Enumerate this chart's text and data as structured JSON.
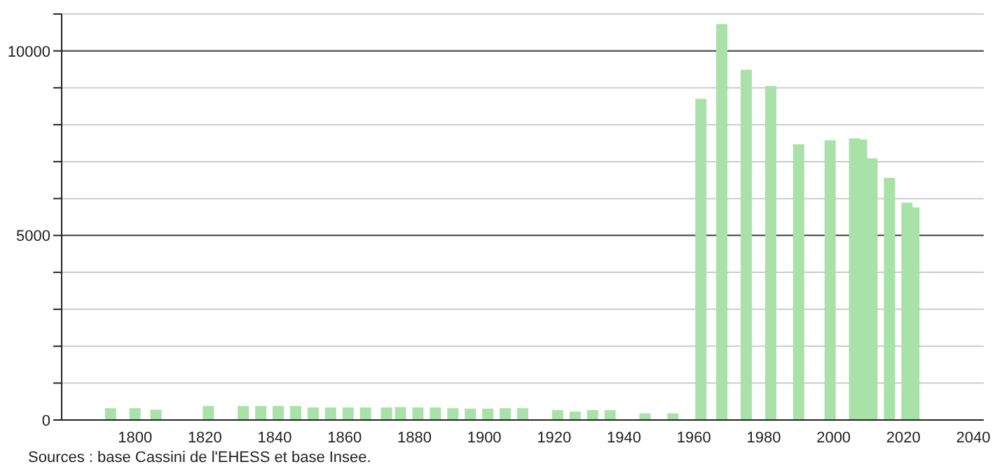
{
  "chart_data": {
    "type": "bar",
    "x": [
      1793,
      1800,
      1806,
      1821,
      1831,
      1836,
      1841,
      1846,
      1851,
      1856,
      1861,
      1866,
      1872,
      1876,
      1881,
      1886,
      1891,
      1896,
      1901,
      1906,
      1911,
      1921,
      1926,
      1931,
      1936,
      1946,
      1954,
      1962,
      1968,
      1975,
      1982,
      1990,
      1999,
      2006,
      2008,
      2011,
      2016,
      2021,
      2023
    ],
    "values": [
      320,
      320,
      280,
      380,
      380,
      380,
      380,
      380,
      340,
      340,
      340,
      340,
      340,
      350,
      340,
      340,
      320,
      310,
      310,
      320,
      320,
      270,
      230,
      270,
      270,
      180,
      180,
      8700,
      10730,
      9490,
      9050,
      7470,
      7580,
      7630,
      7600,
      7090,
      6560,
      5890,
      5760
    ],
    "color": "#a8e2a8",
    "xlim": [
      1779,
      2043
    ],
    "xticks": [
      1800,
      1820,
      1840,
      1860,
      1880,
      1900,
      1920,
      1940,
      1960,
      1980,
      2000,
      2020,
      2040
    ],
    "ylim": [
      0,
      11000
    ],
    "yticks": [
      0,
      {
        "value": 1000,
        "label": null
      },
      {
        "value": 2000,
        "label": null
      },
      {
        "value": 3000,
        "label": null
      },
      {
        "value": 4000,
        "label": null
      },
      5000,
      {
        "value": 6000,
        "label": null
      },
      {
        "value": 7000,
        "label": null
      },
      {
        "value": 8000,
        "label": null
      },
      {
        "value": 9000,
        "label": null
      },
      10000,
      {
        "value": 11000,
        "label": null
      }
    ],
    "grid": "y",
    "annotations": [
      "Sources : base Cassini de l'EHESS et base Insee."
    ]
  }
}
